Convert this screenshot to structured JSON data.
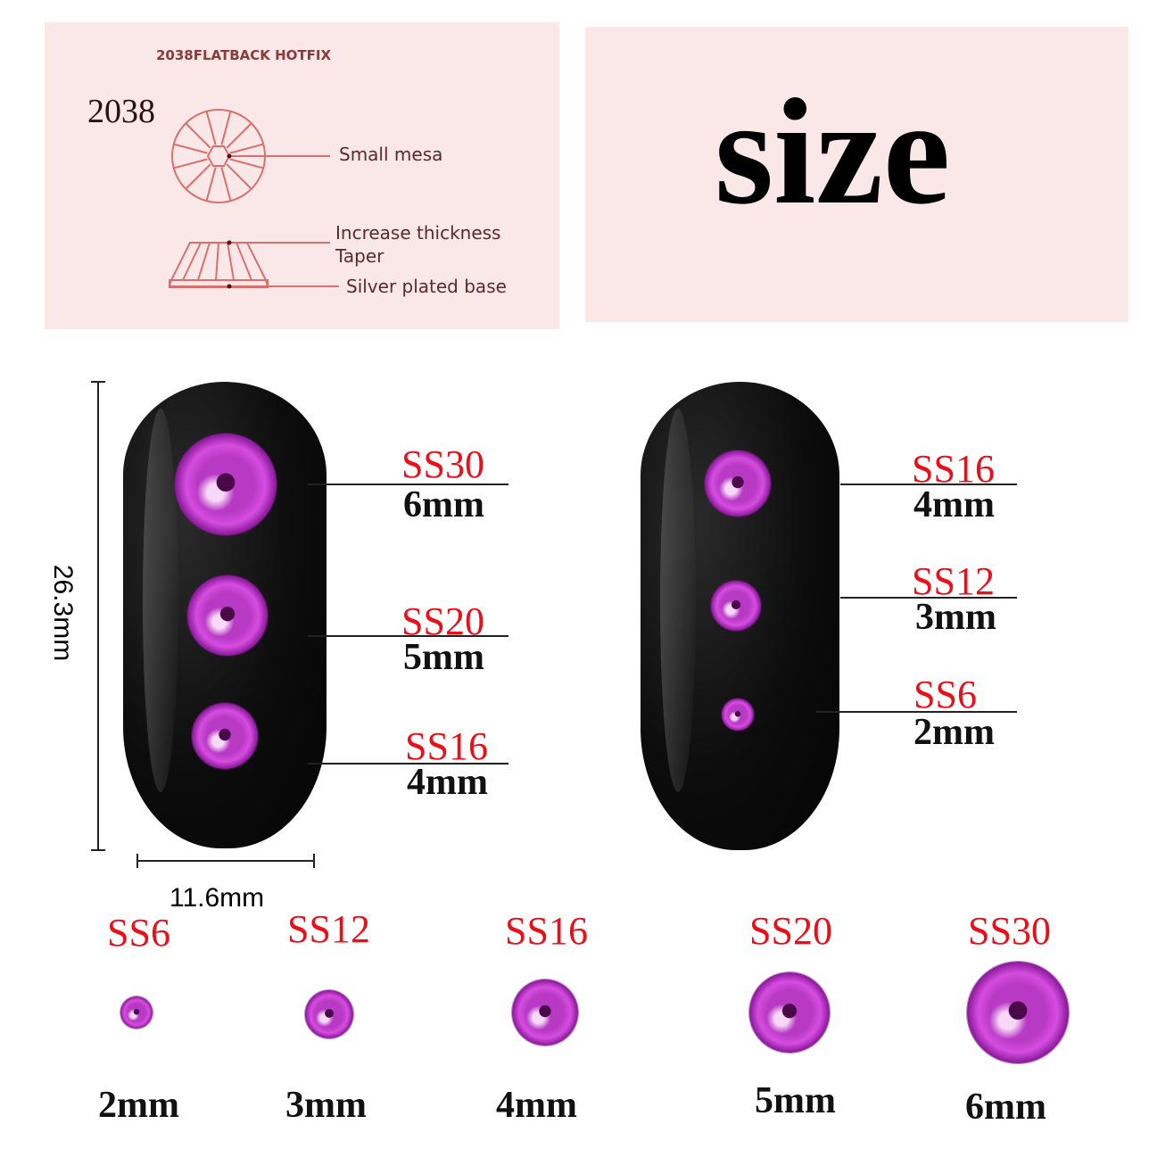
{
  "diagram": {
    "heading": "2038FLATBACK HOTFIX",
    "model": "2038",
    "labels": [
      "Small mesa",
      "Increase thickness",
      "Taper",
      "Silver plated base"
    ],
    "line_color": "#d9706e"
  },
  "title": "size",
  "nail_dimensions": {
    "height": "26.3mm",
    "width": "11.6mm"
  },
  "left_nail": [
    {
      "ss": "SS30",
      "mm": "6mm"
    },
    {
      "ss": "SS20",
      "mm": "5mm"
    },
    {
      "ss": "SS16",
      "mm": "4mm"
    }
  ],
  "right_nail": [
    {
      "ss": "SS16",
      "mm": "4mm"
    },
    {
      "ss": "SS12",
      "mm": "3mm"
    },
    {
      "ss": "SS6",
      "mm": "2mm"
    }
  ],
  "size_row": [
    {
      "ss": "SS6",
      "mm": "2mm"
    },
    {
      "ss": "SS12",
      "mm": "3mm"
    },
    {
      "ss": "SS16",
      "mm": "4mm"
    },
    {
      "ss": "SS20",
      "mm": "5mm"
    },
    {
      "ss": "SS30",
      "mm": "6mm"
    }
  ],
  "colors": {
    "label_red": "#e8101a",
    "stone": "#c23fd0",
    "panel": "#fae8e8"
  }
}
